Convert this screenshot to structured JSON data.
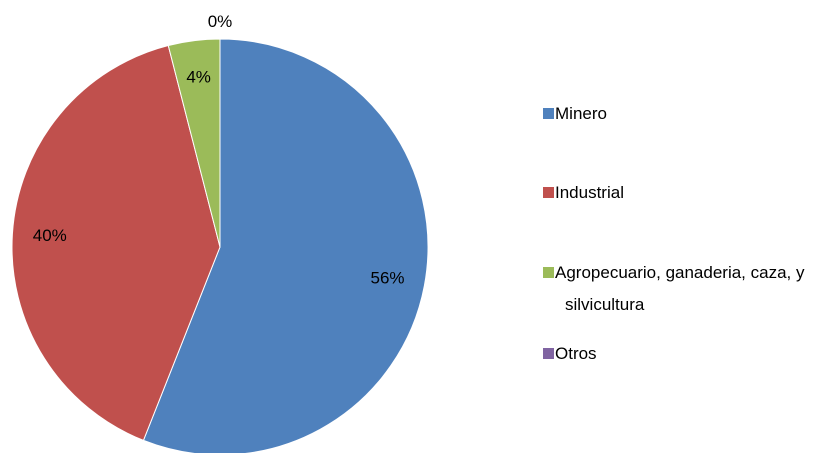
{
  "chart_data": {
    "type": "pie",
    "categories": [
      "Minero",
      "Industrial",
      "Agropecuario, ganaderia, caza, y silvicultura",
      "Otros"
    ],
    "values": [
      56,
      40,
      4,
      0
    ],
    "value_labels": [
      "56%",
      "40%",
      "4%",
      "0%"
    ],
    "colors": [
      "#4f81bd",
      "#c0504d",
      "#9bbb59",
      "#8064a2"
    ],
    "legend": "right"
  }
}
